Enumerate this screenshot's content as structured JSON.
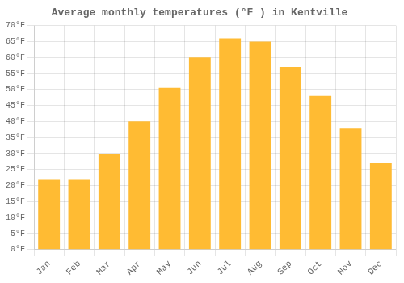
{
  "chart_data": {
    "type": "bar",
    "title": "Average monthly temperatures (°F ) in Kentville",
    "categories": [
      "Jan",
      "Feb",
      "Mar",
      "Apr",
      "May",
      "Jun",
      "Jul",
      "Aug",
      "Sep",
      "Oct",
      "Nov",
      "Dec"
    ],
    "values": [
      22,
      22,
      30,
      40,
      50.5,
      60,
      66,
      65,
      57,
      48,
      38,
      27
    ],
    "color": "#FFBB33",
    "ylim": [
      0,
      70
    ],
    "yticks": [
      {
        "value": 0,
        "label": "0°F"
      },
      {
        "value": 5,
        "label": "5°F"
      },
      {
        "value": 10,
        "label": "10°F"
      },
      {
        "value": 15,
        "label": "15°F"
      },
      {
        "value": 20,
        "label": "20°F"
      },
      {
        "value": 25,
        "label": "25°F"
      },
      {
        "value": 30,
        "label": "30°F"
      },
      {
        "value": 35,
        "label": "35°F"
      },
      {
        "value": 40,
        "label": "40°F"
      },
      {
        "value": 45,
        "label": "45°F"
      },
      {
        "value": 50,
        "label": "50°F"
      },
      {
        "value": 55,
        "label": "55°F"
      },
      {
        "value": 60,
        "label": "60°F"
      },
      {
        "value": 65,
        "label": "65°F"
      },
      {
        "value": 70,
        "label": "70°F"
      }
    ],
    "grid": true
  }
}
